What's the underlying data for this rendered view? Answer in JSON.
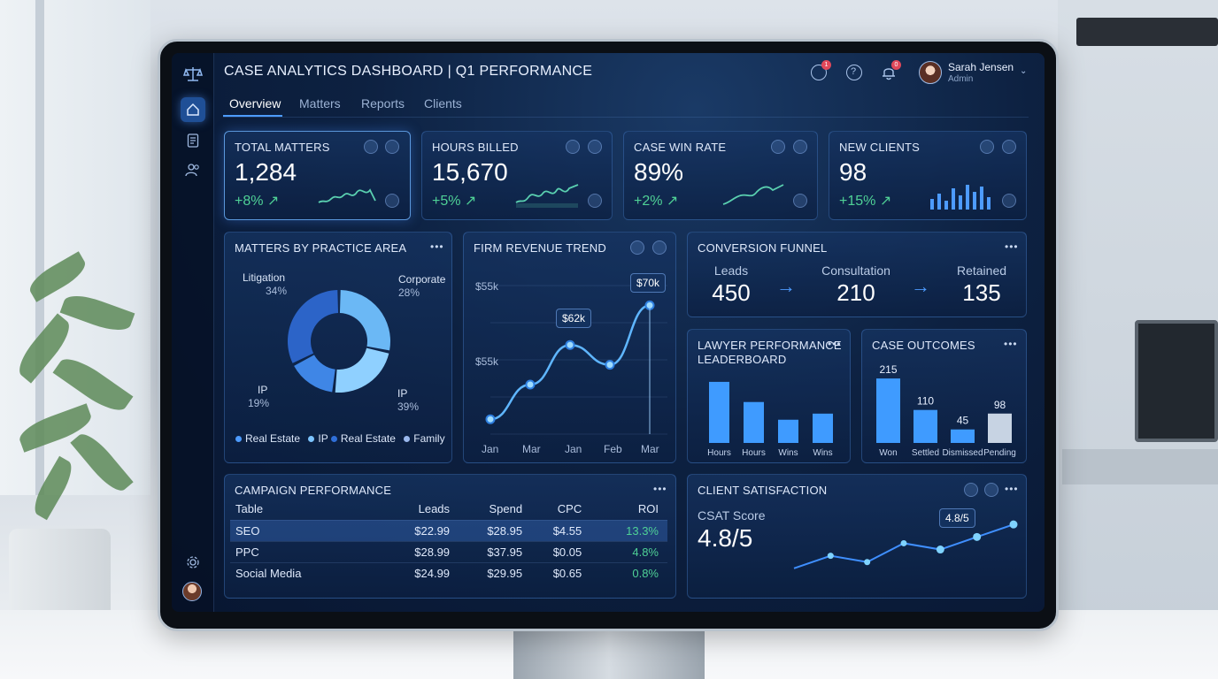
{
  "app": {
    "title": "CASE ANALYTICS DASHBOARD | Q1 PERFORMANCE",
    "user": {
      "name": "Sarah Jensen",
      "role": "Admin"
    },
    "notifications": {
      "alerts_badge": "1",
      "bell_badge": "0"
    }
  },
  "tabs": [
    {
      "label": "Overview",
      "active": true
    },
    {
      "label": "Matters",
      "active": false
    },
    {
      "label": "Reports",
      "active": false
    },
    {
      "label": "Clients",
      "active": false
    }
  ],
  "sidebar": {
    "items": [
      "home-icon",
      "document-icon",
      "users-icon"
    ],
    "bottom": [
      "settings-icon",
      "avatar"
    ]
  },
  "kpis": [
    {
      "title": "TOTAL MATTERS",
      "value": "1,284",
      "change": "+8% ↗"
    },
    {
      "title": "HOURS BILLED",
      "value": "15,670",
      "change": "+5% ↗"
    },
    {
      "title": "CASE WIN RATE",
      "value": "89%",
      "change": "+2% ↗"
    },
    {
      "title": "NEW CLIENTS",
      "value": "98",
      "change": "+15% ↗"
    }
  ],
  "practice_area": {
    "title": "MATTERS BY PRACTICE AREA",
    "labels": [
      {
        "name": "Litigation",
        "pct": "34%"
      },
      {
        "name": "Corporate",
        "pct": "28%"
      },
      {
        "name": "IP",
        "pct": "19%"
      },
      {
        "name": "IP",
        "pct": "39%"
      }
    ],
    "legend": [
      "Real Estate",
      "IP",
      "Real Estate",
      "Family"
    ]
  },
  "revenue": {
    "title": "FIRM REVENUE TREND",
    "y_ticks": [
      "$55k",
      "$55k"
    ],
    "x_ticks": [
      "Jan",
      "Mar",
      "Jan",
      "Feb",
      "Mar"
    ],
    "callouts": [
      "$62k",
      "$70k"
    ]
  },
  "funnel": {
    "title": "CONVERSION FUNNEL",
    "stages": [
      {
        "label": "Leads",
        "value": "450"
      },
      {
        "label": "Consultation",
        "value": "210"
      },
      {
        "label": "Retained",
        "value": "135"
      }
    ]
  },
  "leaderboard": {
    "title_line1": "LAWYER PERFORMANCE",
    "title_line2": "LEADERBOARD",
    "categories": [
      "Hours",
      "Hours",
      "Wins",
      "Wins"
    ]
  },
  "outcomes": {
    "title": "CASE OUTCOMES",
    "categories": [
      "Won",
      "Settled",
      "Dismissed",
      "Pending"
    ],
    "value_labels": [
      "215",
      "110",
      "45",
      "98"
    ]
  },
  "campaign": {
    "title": "CAMPAIGN PERFORMANCE",
    "columns": [
      "Table",
      "Leads",
      "Spend",
      "CPC",
      "ROI"
    ],
    "rows": [
      [
        "SEO",
        "$22.99",
        "$28.95",
        "$4.55",
        "13.3%"
      ],
      [
        "PPC",
        "$28.99",
        "$37.95",
        "$0.05",
        "4.8%"
      ],
      [
        "Social Media",
        "$24.99",
        "$29.95",
        "$0.65",
        "0.8%"
      ]
    ]
  },
  "satisfaction": {
    "title": "CLIENT SATISFACTION",
    "label": "CSAT Score",
    "value": "4.8/5",
    "callout": "4.8/5"
  },
  "chart_data": [
    {
      "type": "pie",
      "title": "MATTERS BY PRACTICE AREA",
      "categories": [
        "Litigation",
        "Corporate",
        "IP",
        "IP"
      ],
      "values": [
        34,
        28,
        19,
        39
      ]
    },
    {
      "type": "line",
      "title": "FIRM REVENUE TREND",
      "x": [
        "Jan",
        "Mar",
        "Jan",
        "Feb",
        "Mar"
      ],
      "values": [
        47,
        54,
        62,
        58,
        70
      ],
      "ylim": [
        44,
        74
      ]
    },
    {
      "type": "bar",
      "title": "LAWYER PERFORMANCE LEADERBOARD",
      "categories": [
        "Hours",
        "Hours",
        "Wins",
        "Wins"
      ],
      "values": [
        100,
        67,
        38,
        48
      ],
      "ylim": [
        0,
        110
      ]
    },
    {
      "type": "bar",
      "title": "CASE OUTCOMES",
      "categories": [
        "Won",
        "Settled",
        "Dismissed",
        "Pending"
      ],
      "values": [
        215,
        110,
        45,
        98
      ],
      "ylim": [
        0,
        230
      ]
    },
    {
      "type": "line",
      "title": "CLIENT SATISFACTION",
      "values": [
        4.1,
        4.3,
        4.2,
        4.5,
        4.4,
        4.6,
        4.8
      ],
      "ylim": [
        3.9,
        5.0
      ]
    }
  ]
}
